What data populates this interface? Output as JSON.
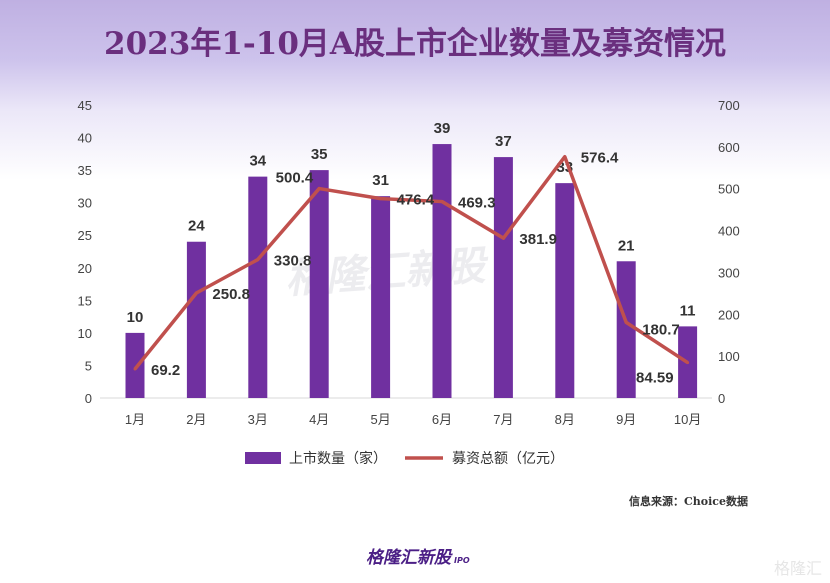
{
  "title": "2023年1-10月A股上市企业数量及募资情况",
  "chart_data": {
    "type": "bar+line",
    "title": "2023年1-10月A股上市企业数量及募资情况",
    "categories": [
      "1月",
      "2月",
      "3月",
      "4月",
      "5月",
      "6月",
      "7月",
      "8月",
      "9月",
      "10月"
    ],
    "series": [
      {
        "name": "上市数量（家）",
        "type": "bar",
        "axis": "left",
        "color": "#7030a0",
        "values": [
          10,
          24,
          34,
          35,
          31,
          39,
          37,
          33,
          21,
          11
        ],
        "labels": [
          "10",
          "24",
          "34",
          "35",
          "31",
          "39",
          "37",
          "33",
          "21",
          "11"
        ]
      },
      {
        "name": "募资总额（亿元）",
        "type": "line",
        "axis": "right",
        "color": "#c0504d",
        "values": [
          69.2,
          250.8,
          330.8,
          500.4,
          476.4,
          469.3,
          381.9,
          576.4,
          180.7,
          84.59
        ],
        "labels": [
          "69.2",
          "250.8",
          "330.8",
          "500.4",
          "476.4",
          "469.3",
          "381.9",
          "576.4",
          "180.7",
          "84.59"
        ]
      }
    ],
    "ylim_left": [
      0,
      45
    ],
    "yticks_left": [
      "0",
      "5",
      "10",
      "15",
      "20",
      "25",
      "30",
      "35",
      "40",
      "45"
    ],
    "ylim_right": [
      0,
      700
    ],
    "yticks_right": [
      "0",
      "100",
      "200",
      "300",
      "400",
      "500",
      "600",
      "700"
    ],
    "grid": false,
    "legend": "bottom"
  },
  "source": "信息来源：Choice数据",
  "logo": "格隆汇新股",
  "logo_sub": "IPO",
  "watermark": "格隆汇"
}
